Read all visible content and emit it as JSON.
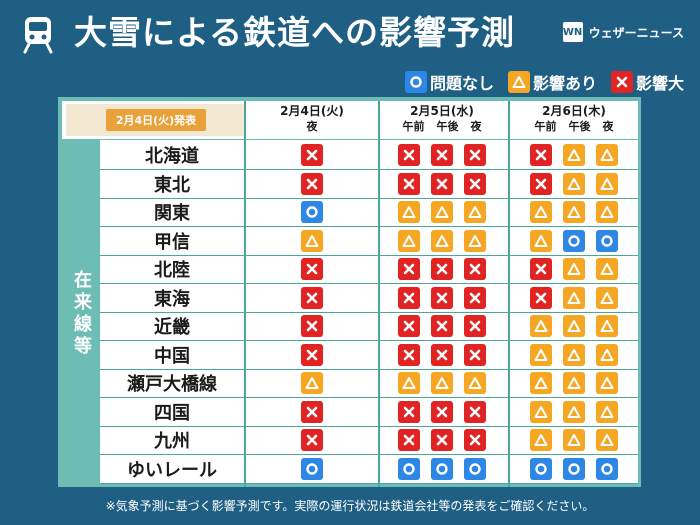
{
  "title": "大雪による鉄道への影響予測",
  "brand": {
    "logo_text": "WN",
    "name": "ウェザーニュース"
  },
  "legend": [
    {
      "status": "ok",
      "label": "問題なし"
    },
    {
      "status": "warn",
      "label": "影響あり"
    },
    {
      "status": "bad",
      "label": "影響大"
    }
  ],
  "colors": {
    "ok": "#2e86e6",
    "warn": "#f5a623",
    "bad": "#e02424",
    "background": "#1f5f84",
    "panel": "#6ebdb4"
  },
  "issued": "2月4日(火)発表",
  "side_label": "在来線等",
  "columns": [
    {
      "date": "2月4日(火)",
      "periods": [
        "夜"
      ]
    },
    {
      "date": "2月5日(水)",
      "periods": [
        "午前",
        "午後",
        "夜"
      ]
    },
    {
      "date": "2月6日(木)",
      "periods": [
        "午前",
        "午後",
        "夜"
      ]
    }
  ],
  "rows": [
    {
      "region": "北海道",
      "values": [
        "bad",
        "bad",
        "bad",
        "bad",
        "bad",
        "warn",
        "warn"
      ]
    },
    {
      "region": "東北",
      "values": [
        "bad",
        "bad",
        "bad",
        "bad",
        "bad",
        "warn",
        "warn"
      ]
    },
    {
      "region": "関東",
      "values": [
        "ok",
        "warn",
        "warn",
        "warn",
        "warn",
        "warn",
        "warn"
      ]
    },
    {
      "region": "甲信",
      "values": [
        "warn",
        "warn",
        "warn",
        "warn",
        "warn",
        "ok",
        "ok"
      ]
    },
    {
      "region": "北陸",
      "values": [
        "bad",
        "bad",
        "bad",
        "bad",
        "bad",
        "warn",
        "warn"
      ]
    },
    {
      "region": "東海",
      "values": [
        "bad",
        "bad",
        "bad",
        "bad",
        "bad",
        "warn",
        "warn"
      ]
    },
    {
      "region": "近畿",
      "values": [
        "bad",
        "bad",
        "bad",
        "bad",
        "warn",
        "warn",
        "warn"
      ]
    },
    {
      "region": "中国",
      "values": [
        "bad",
        "bad",
        "bad",
        "bad",
        "warn",
        "warn",
        "warn"
      ]
    },
    {
      "region": "瀬戸大橋線",
      "values": [
        "warn",
        "warn",
        "warn",
        "warn",
        "warn",
        "warn",
        "warn"
      ]
    },
    {
      "region": "四国",
      "values": [
        "bad",
        "bad",
        "bad",
        "bad",
        "warn",
        "warn",
        "warn"
      ]
    },
    {
      "region": "九州",
      "values": [
        "bad",
        "bad",
        "bad",
        "bad",
        "warn",
        "warn",
        "warn"
      ]
    },
    {
      "region": "ゆいレール",
      "values": [
        "ok",
        "ok",
        "ok",
        "ok",
        "ok",
        "ok",
        "ok"
      ]
    }
  ],
  "footer": "※気象予測に基づく影響予測です。実際の運行状況は鉄道会社等の発表をご確認ください。"
}
